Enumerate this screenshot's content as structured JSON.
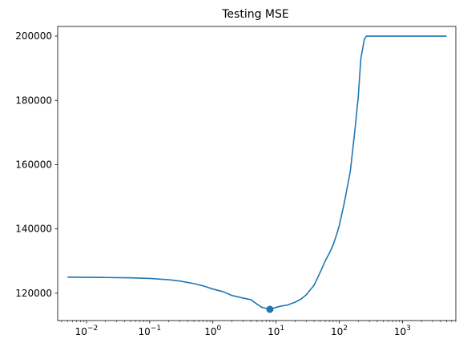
{
  "chart_data": {
    "type": "line",
    "title": "Testing MSE",
    "xlabel": "",
    "ylabel": "",
    "xscale": "log",
    "xlim": [
      0.0035,
      7000
    ],
    "ylim": [
      111500,
      203000
    ],
    "grid": false,
    "legend": "none",
    "x_ticks": [
      {
        "value": 0.01,
        "base": "10",
        "exp": "−2"
      },
      {
        "value": 0.1,
        "base": "10",
        "exp": "−1"
      },
      {
        "value": 1,
        "base": "10",
        "exp": "0"
      },
      {
        "value": 10,
        "base": "10",
        "exp": "1"
      },
      {
        "value": 100,
        "base": "10",
        "exp": "2"
      },
      {
        "value": 1000,
        "base": "10",
        "exp": "3"
      }
    ],
    "y_ticks": [
      {
        "value": 120000,
        "label": "120000"
      },
      {
        "value": 140000,
        "label": "140000"
      },
      {
        "value": 160000,
        "label": "160000"
      },
      {
        "value": 180000,
        "label": "180000"
      },
      {
        "value": 200000,
        "label": "200000"
      }
    ],
    "series": [
      {
        "color": "#1f77b4",
        "x": [
          0.005,
          0.01,
          0.02,
          0.05,
          0.1,
          0.2,
          0.3,
          0.5,
          0.7,
          1.0,
          1.5,
          2.0,
          3.0,
          4.0,
          5.0,
          6.0,
          7.0,
          8.0,
          9.0,
          10.0,
          12.0,
          15.0,
          20.0,
          25.0,
          30.0,
          40.0,
          50.0,
          60.0,
          70.0,
          80.0,
          90.0,
          100.0,
          120.0,
          150.0,
          180.0,
          200.0,
          220.0,
          250.0,
          270.0,
          300.0,
          500.0,
          1000.0,
          2000.0,
          5000.0
        ],
        "y": [
          125000,
          124950,
          124900,
          124800,
          124600,
          124200,
          123800,
          123000,
          122300,
          121300,
          120400,
          119300,
          118500,
          118000,
          116600,
          115600,
          115300,
          115200,
          115300,
          115600,
          116000,
          116300,
          117200,
          118200,
          119500,
          122500,
          126500,
          130000,
          132500,
          135000,
          138000,
          141000,
          148000,
          158000,
          172000,
          181000,
          193000,
          199000,
          200000,
          200000,
          200000,
          200000,
          200000,
          200000
        ]
      }
    ],
    "markers": [
      {
        "x": 8.0,
        "y": 115000,
        "color": "#1f77b4"
      }
    ]
  }
}
